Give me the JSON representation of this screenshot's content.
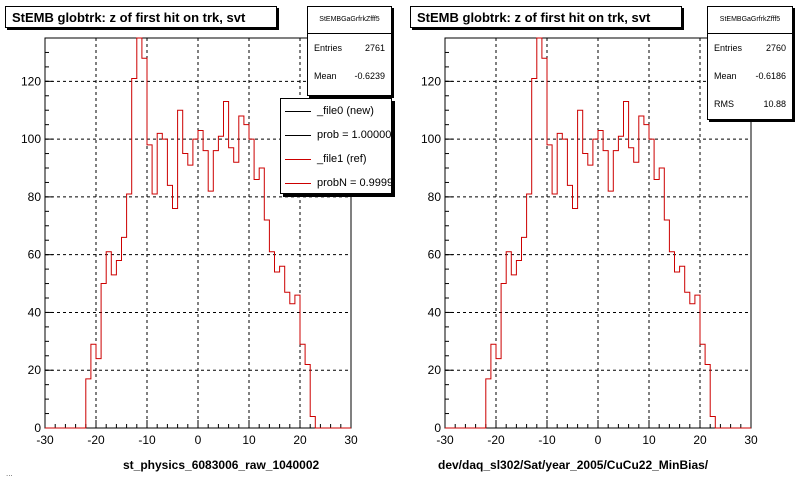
{
  "chart_data": [
    {
      "type": "bar",
      "title": "StEMB globtrk: z of first hit on trk, svt",
      "xlabel": "st_physics_6083006_raw_1040002",
      "xlim": [
        -30,
        30
      ],
      "ylim": [
        0,
        135
      ],
      "xticks": [
        -30,
        -20,
        -10,
        0,
        10,
        20,
        30
      ],
      "yticks": [
        0,
        20,
        40,
        60,
        80,
        100,
        120
      ],
      "grid": true,
      "stats": {
        "name": "StEMBGaGrfrkZfff5",
        "entries_label": "Entries",
        "entries": "2761",
        "mean_label": "Mean",
        "mean": "-0.6239"
      },
      "legend": {
        "placement": "top-right",
        "entries": [
          {
            "label": "_file0 (new)",
            "color": "#000000"
          },
          {
            "label": "prob = 1.000000",
            "color": "#000000"
          },
          {
            "label": "_file1 (ref)",
            "color": "#cc0000"
          },
          {
            "label": "probN = 0.99994",
            "color": "#cc0000"
          }
        ]
      },
      "bin_edges_start": -22,
      "bin_width": 1,
      "series": [
        {
          "color": "#cc0000",
          "values": [
            17,
            29,
            24,
            50,
            61,
            53,
            58,
            66,
            81,
            121,
            135,
            128,
            98,
            81,
            102,
            100,
            84,
            76,
            110,
            95,
            91,
            100,
            103,
            96,
            82,
            96,
            101,
            113,
            97,
            92,
            108,
            105,
            100,
            86,
            90,
            72,
            61,
            54,
            56,
            47,
            43,
            46,
            29,
            22,
            4
          ]
        }
      ]
    },
    {
      "type": "bar",
      "title": "StEMB globtrk: z of first hit on trk, svt",
      "xlabel": "dev/daq_sl302/Sat/year_2005/CuCu22_MinBias/",
      "xlim": [
        -30,
        30
      ],
      "ylim": [
        0,
        135
      ],
      "xticks": [
        -30,
        -20,
        -10,
        0,
        10,
        20,
        30
      ],
      "yticks": [
        0,
        20,
        40,
        60,
        80,
        100,
        120
      ],
      "grid": true,
      "stats": {
        "name": "StEMBGaGrfrkZfff5",
        "entries_label": "Entries",
        "entries": "2760",
        "mean_label": "Mean",
        "mean": "-0.6186",
        "rms_label": "RMS",
        "rms": "10.88"
      },
      "bin_edges_start": -22,
      "bin_width": 1,
      "series": [
        {
          "color": "#cc0000",
          "values": [
            17,
            29,
            24,
            50,
            61,
            53,
            58,
            66,
            81,
            121,
            135,
            128,
            98,
            81,
            102,
            100,
            84,
            76,
            110,
            95,
            91,
            100,
            103,
            96,
            82,
            96,
            101,
            113,
            97,
            92,
            108,
            105,
            100,
            86,
            90,
            72,
            61,
            54,
            56,
            47,
            43,
            46,
            29,
            22,
            4
          ]
        }
      ]
    }
  ],
  "footer": "..."
}
